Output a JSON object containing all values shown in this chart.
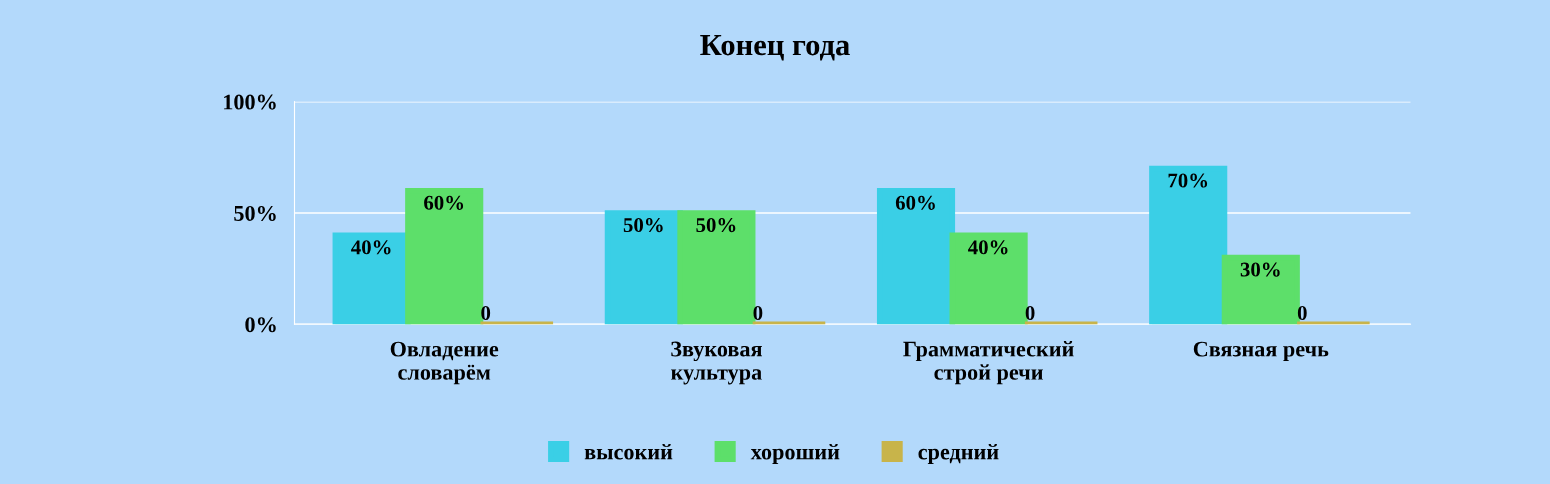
{
  "chart_data": {
    "type": "bar",
    "title": "Конец года",
    "categories": [
      "Овладение\nсловарём",
      "Звуковая\nкультура",
      "Грамматический\nстрой речи",
      "Связная речь"
    ],
    "series": [
      {
        "name": "высокий",
        "color": "#3acfe6",
        "values": [
          40,
          50,
          60,
          70
        ],
        "value_labels": [
          "40%",
          "50%",
          "60%",
          "70%"
        ]
      },
      {
        "name": "хороший",
        "color": "#5ddf6a",
        "values": [
          60,
          50,
          40,
          30
        ],
        "value_labels": [
          "60%",
          "50%",
          "40%",
          "30%"
        ]
      },
      {
        "name": "средний",
        "color": "#c8b44a",
        "values": [
          0,
          0,
          0,
          0
        ],
        "value_labels": [
          "0",
          "0",
          "0",
          "0"
        ]
      }
    ],
    "ylim": [
      0,
      100
    ],
    "yticks": [
      {
        "value": 0,
        "label": "0%"
      },
      {
        "value": 50,
        "label": "50%"
      },
      {
        "value": 100,
        "label": "100%"
      }
    ],
    "grid": "y",
    "legend": "bottom"
  }
}
